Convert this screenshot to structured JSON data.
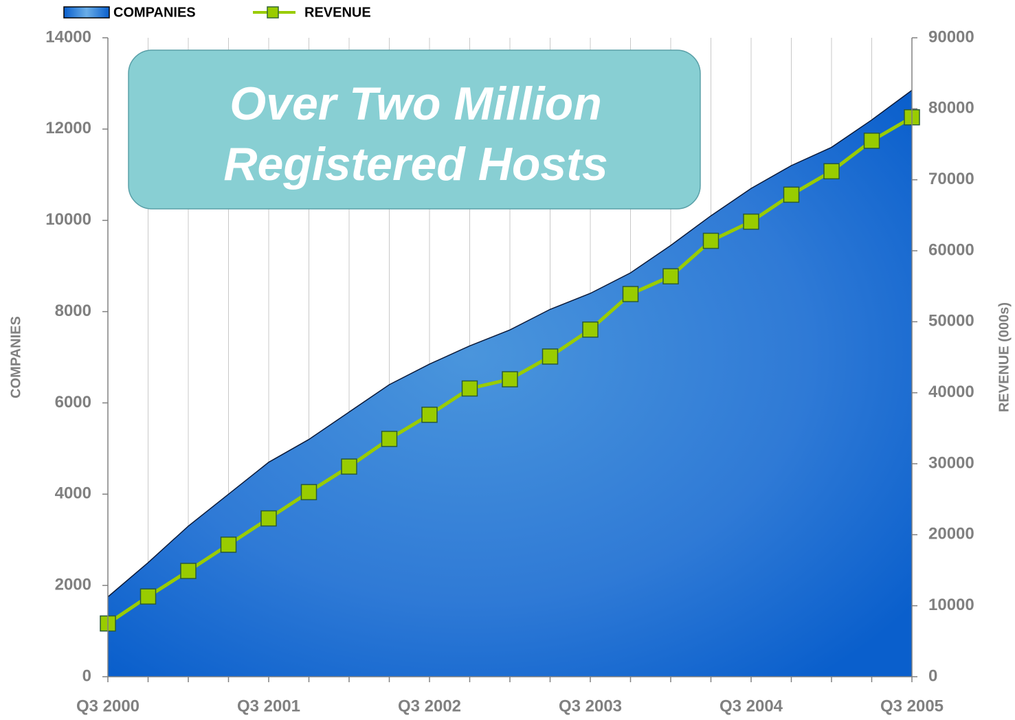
{
  "chart_data": {
    "type": "area-line",
    "categories": [
      "Q3 2000",
      null,
      null,
      null,
      "Q3 2001",
      null,
      null,
      null,
      "Q3 2002",
      null,
      null,
      null,
      "Q3 2003",
      null,
      null,
      null,
      "Q3 2004",
      null,
      null,
      null,
      "Q3 2005"
    ],
    "series": [
      {
        "name": "COMPANIES",
        "color": "#1a6ad4",
        "axis": "y",
        "values": [
          1750,
          2500,
          3300,
          4000,
          4700,
          5200,
          5800,
          6400,
          6850,
          7250,
          7600,
          8050,
          8400,
          8850,
          9450,
          10100,
          10700,
          11200,
          11600,
          12200,
          12850
        ]
      },
      {
        "name": "REVENUE",
        "color": "#99cc00",
        "axis": "y2",
        "values": [
          7500,
          11300,
          14900,
          18600,
          22300,
          26000,
          29600,
          33500,
          36900,
          40600,
          41900,
          45100,
          48900,
          53900,
          56400,
          61400,
          64100,
          67900,
          71200,
          75500,
          78800
        ]
      }
    ],
    "ylabel": "COMPANIES",
    "y2label": "REVENUE (000s)",
    "ylim": [
      0,
      14000
    ],
    "yticks": [
      0,
      2000,
      4000,
      6000,
      8000,
      10000,
      12000,
      14000
    ],
    "y2lim": [
      0,
      90000
    ],
    "y2ticks": [
      0,
      10000,
      20000,
      30000,
      40000,
      50000,
      60000,
      70000,
      80000,
      90000
    ],
    "annotation": [
      "Over Two Million",
      "Registered Hosts"
    ],
    "grid": true,
    "legend": "top"
  }
}
